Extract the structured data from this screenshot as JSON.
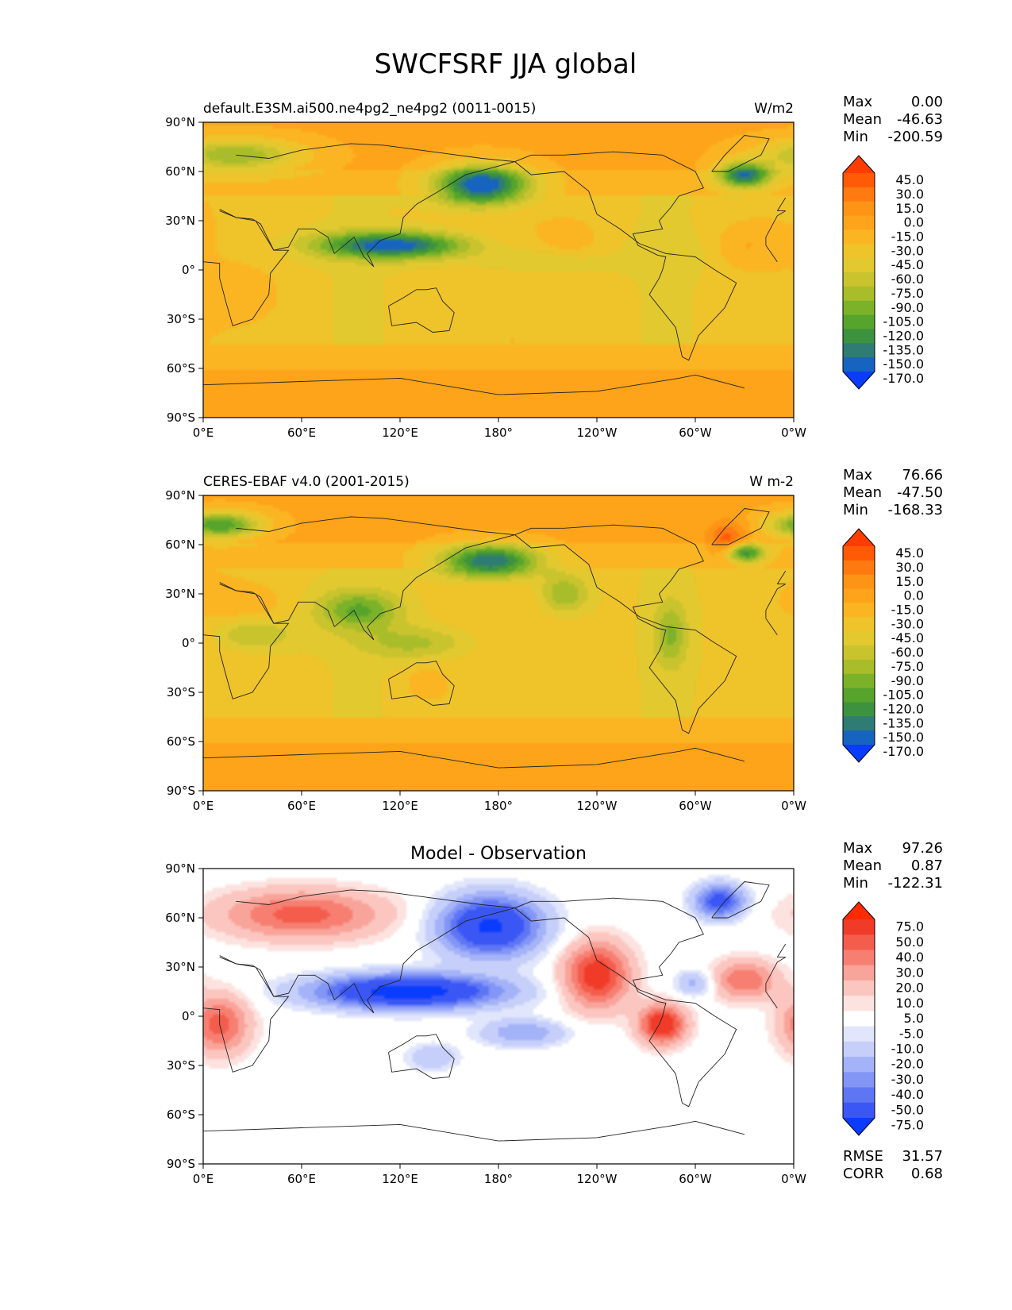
{
  "figure": {
    "title": "SWCFSRF JJA global"
  },
  "chart_data": [
    {
      "type": "heatmap",
      "title": "default.E3SM.ai500.ne4pg2_ne4pg2 (0011-0015)",
      "units": "W/m2",
      "xticks": [
        "0°E",
        "60°E",
        "120°E",
        "180°",
        "120°W",
        "60°W",
        "0°W"
      ],
      "yticks": [
        "90°N",
        "60°N",
        "30°N",
        "0°",
        "30°S",
        "60°S",
        "90°S"
      ],
      "xlim": [
        0,
        360
      ],
      "ylim": [
        -90,
        90
      ],
      "stats": {
        "max_label": "Max",
        "max": "0.00",
        "mean_label": "Mean",
        "mean": "-46.63",
        "min_label": "Min",
        "min": "-200.59"
      },
      "colorbar": {
        "levels": [
          "45.0",
          "30.0",
          "15.0",
          "0.0",
          "-15.0",
          "-30.0",
          "-45.0",
          "-60.0",
          "-75.0",
          "-90.0",
          "-105.0",
          "-120.0",
          "-135.0",
          "-150.0",
          "-170.0"
        ],
        "colors": [
          "#ff3d00",
          "#ff5a05",
          "#ff7a10",
          "#fe9415",
          "#fea41a",
          "#fbb523",
          "#efc32a",
          "#e2c930",
          "#c9c32e",
          "#a9bd2a",
          "#7cb229",
          "#57a42c",
          "#3d9240",
          "#2f7c74",
          "#1664c0",
          "#0a3cff"
        ]
      },
      "field_range": [
        -200.59,
        0
      ],
      "features": [
        {
          "lon": 170,
          "lat": 52,
          "value": -170,
          "rx": 28,
          "ry": 12
        },
        {
          "lon": 115,
          "lat": 15,
          "value": -165,
          "rx": 45,
          "ry": 8
        },
        {
          "lon": 330,
          "lat": 58,
          "value": -150,
          "rx": 16,
          "ry": 8
        },
        {
          "lon": 20,
          "lat": 70,
          "value": -90,
          "rx": 40,
          "ry": 10
        },
        {
          "lon": 285,
          "lat": 10,
          "value": -60,
          "rx": 20,
          "ry": 12
        },
        {
          "lon": 200,
          "lat": 5,
          "value": -55,
          "rx": 40,
          "ry": 8
        },
        {
          "lon": 30,
          "lat": -15,
          "value": -20,
          "rx": 20,
          "ry": 15
        },
        {
          "lon": 225,
          "lat": 20,
          "value": -15,
          "rx": 15,
          "ry": 10
        },
        {
          "lon": 330,
          "lat": 15,
          "value": -15,
          "rx": 20,
          "ry": 15
        },
        {
          "lon": 180,
          "lat": -65,
          "value": -10,
          "rx": 200,
          "ry": 8
        }
      ]
    },
    {
      "type": "heatmap",
      "title": "CERES-EBAF v4.0 (2001-2015)",
      "units": "W m-2",
      "xticks": [
        "0°E",
        "60°E",
        "120°E",
        "180°",
        "120°W",
        "60°W",
        "0°W"
      ],
      "yticks": [
        "90°N",
        "60°N",
        "30°N",
        "0°",
        "30°S",
        "60°S",
        "90°S"
      ],
      "xlim": [
        0,
        360
      ],
      "ylim": [
        -90,
        90
      ],
      "stats": {
        "max_label": "Max",
        "max": "76.66",
        "mean_label": "Mean",
        "mean": "-47.50",
        "min_label": "Min",
        "min": "-168.33"
      },
      "colorbar": {
        "levels": [
          "45.0",
          "30.0",
          "15.0",
          "0.0",
          "-15.0",
          "-30.0",
          "-45.0",
          "-60.0",
          "-75.0",
          "-90.0",
          "-105.0",
          "-120.0",
          "-135.0",
          "-150.0",
          "-170.0"
        ],
        "colors": [
          "#ff3d00",
          "#ff5a05",
          "#ff7a10",
          "#fe9415",
          "#fea41a",
          "#fbb523",
          "#efc32a",
          "#e2c930",
          "#c9c32e",
          "#a9bd2a",
          "#7cb229",
          "#57a42c",
          "#3d9240",
          "#2f7c74",
          "#1664c0",
          "#0a3cff"
        ]
      },
      "field_range": [
        -168.33,
        76.66
      ],
      "features": [
        {
          "lon": 175,
          "lat": 50,
          "value": -150,
          "rx": 30,
          "ry": 10
        },
        {
          "lon": 320,
          "lat": 62,
          "value": 40,
          "rx": 12,
          "ry": 12
        },
        {
          "lon": 330,
          "lat": 55,
          "value": -140,
          "rx": 12,
          "ry": 6
        },
        {
          "lon": 10,
          "lat": 72,
          "value": -120,
          "rx": 25,
          "ry": 8
        },
        {
          "lon": 95,
          "lat": 20,
          "value": -110,
          "rx": 25,
          "ry": 12
        },
        {
          "lon": 285,
          "lat": 5,
          "value": -95,
          "rx": 10,
          "ry": 20
        },
        {
          "lon": 130,
          "lat": 0,
          "value": -80,
          "rx": 35,
          "ry": 10
        },
        {
          "lon": 220,
          "lat": 30,
          "value": -90,
          "rx": 15,
          "ry": 12
        },
        {
          "lon": 30,
          "lat": 5,
          "value": -75,
          "rx": 25,
          "ry": 10
        },
        {
          "lon": 25,
          "lat": 25,
          "value": -15,
          "rx": 25,
          "ry": 10
        },
        {
          "lon": 135,
          "lat": -25,
          "value": -15,
          "rx": 12,
          "ry": 10
        },
        {
          "lon": 180,
          "lat": -70,
          "value": -10,
          "rx": 200,
          "ry": 6
        }
      ]
    },
    {
      "type": "heatmap",
      "title": "Model - Observation",
      "units": "",
      "xticks": [
        "0°E",
        "60°E",
        "120°E",
        "180°",
        "120°W",
        "60°W",
        "0°W"
      ],
      "yticks": [
        "90°N",
        "60°N",
        "30°N",
        "0°",
        "30°S",
        "60°S",
        "90°S"
      ],
      "xlim": [
        0,
        360
      ],
      "ylim": [
        -90,
        90
      ],
      "stats": {
        "max_label": "Max",
        "max": "97.26",
        "mean_label": "Mean",
        "mean": "0.87",
        "min_label": "Min",
        "min": "-122.31"
      },
      "colorbar": {
        "levels": [
          "75.0",
          "50.0",
          "40.0",
          "30.0",
          "20.0",
          "10.0",
          "5.0",
          "-5.0",
          "-10.0",
          "-20.0",
          "-30.0",
          "-40.0",
          "-50.0",
          "-75.0"
        ],
        "colors": [
          "#ff2b00",
          "#f03b29",
          "#f45c4c",
          "#f77f72",
          "#f9a49a",
          "#fcc6c0",
          "#fde3e0",
          "#ffffff",
          "#e1e6fc",
          "#c6cffa",
          "#a4b2f8",
          "#8396f6",
          "#5f76f4",
          "#3a57f5",
          "#0a3cff"
        ]
      },
      "field_range": [
        -122.31,
        97.26
      ],
      "features": [
        {
          "lon": 175,
          "lat": 55,
          "value": -80,
          "rx": 30,
          "ry": 18
        },
        {
          "lon": 125,
          "lat": 15,
          "value": -90,
          "rx": 55,
          "ry": 10
        },
        {
          "lon": 60,
          "lat": 62,
          "value": 45,
          "rx": 50,
          "ry": 15
        },
        {
          "lon": 240,
          "lat": 25,
          "value": 60,
          "rx": 20,
          "ry": 20
        },
        {
          "lon": 280,
          "lat": -5,
          "value": 65,
          "rx": 14,
          "ry": 12
        },
        {
          "lon": 10,
          "lat": -5,
          "value": 45,
          "rx": 18,
          "ry": 18
        },
        {
          "lon": 330,
          "lat": 22,
          "value": 40,
          "rx": 20,
          "ry": 12
        },
        {
          "lon": 300,
          "lat": 20,
          "value": -25,
          "rx": 12,
          "ry": 8
        },
        {
          "lon": 315,
          "lat": 70,
          "value": -60,
          "rx": 15,
          "ry": 10
        },
        {
          "lon": 140,
          "lat": -25,
          "value": -20,
          "rx": 15,
          "ry": 8
        },
        {
          "lon": 195,
          "lat": -10,
          "value": -30,
          "rx": 25,
          "ry": 8
        }
      ]
    }
  ],
  "diff_summary": {
    "rmse_label": "RMSE",
    "rmse": "31.57",
    "corr_label": "CORR",
    "corr": "0.68"
  }
}
